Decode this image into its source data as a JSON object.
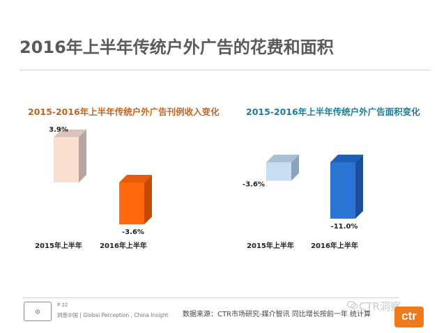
{
  "page": {
    "title": "2016年上半年传统户外广告的花费和面积"
  },
  "footer": {
    "page_number": "P 22",
    "slogan": "洞悉中国  |  Global Perception , China Insight",
    "source": "数据来源：CTR市场研究-媒介智讯  同比增长按前一年  统计算",
    "watermark": "CTR洞察",
    "ctr_logo_text": "ctr"
  },
  "chart_data": [
    {
      "type": "bar",
      "title": "2015-2016年上半年传统户外广告刊例收入变化",
      "categories": [
        "2015年上半年",
        "2016年上半年"
      ],
      "values": [
        3.9,
        -3.6
      ],
      "labels": [
        "3.9%",
        "-3.6%"
      ],
      "colors": [
        "#fbe0d0",
        "#ff6a0f"
      ],
      "side_colors": [
        "#b5a7a0",
        "#c44a00"
      ],
      "top_colors": [
        "#d8c4b8",
        "#e8590a"
      ]
    },
    {
      "type": "bar",
      "title": "2015-2016年上半年传统户外广告面积变化",
      "categories": [
        "2015年上半年",
        "2016年上半年"
      ],
      "values": [
        -3.6,
        -11.0
      ],
      "labels": [
        "-3.6%",
        "-11.0%"
      ],
      "colors": [
        "#c6ddf4",
        "#2a74d4"
      ],
      "side_colors": [
        "#8aa3b8",
        "#1a4e98"
      ],
      "top_colors": [
        "#a8bfd4",
        "#1f5fb8"
      ]
    }
  ]
}
